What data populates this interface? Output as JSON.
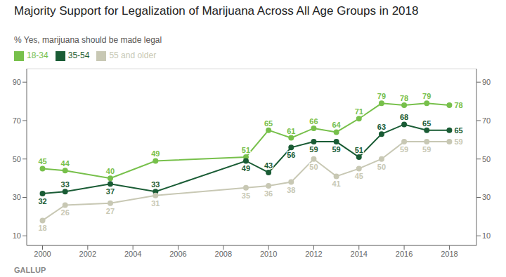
{
  "chart_data": {
    "type": "line",
    "title": "Majority Support for Legalization of Marijuana Across All Age Groups in 2018",
    "subtitle": "% Yes, marijuana should be made legal",
    "annotations": [
      "GALLUP"
    ],
    "x": [
      2000,
      2001,
      2003,
      2005,
      2009,
      2010,
      2011,
      2012,
      2013,
      2014,
      2015,
      2016,
      2017,
      2018
    ],
    "series": [
      {
        "name": "18-34",
        "color": "#77c04b",
        "values": [
          45,
          44,
          40,
          49,
          51,
          65,
          61,
          66,
          64,
          71,
          79,
          78,
          79,
          78
        ]
      },
      {
        "name": "35-54",
        "color": "#1a5c35",
        "values": [
          32,
          33,
          37,
          33,
          49,
          43,
          56,
          59,
          59,
          51,
          63,
          68,
          65,
          65
        ]
      },
      {
        "name": "55 and older",
        "color": "#c8c8b4",
        "values": [
          18,
          26,
          27,
          31,
          35,
          36,
          38,
          50,
          41,
          45,
          50,
          59,
          59,
          59
        ]
      }
    ],
    "xlim": [
      1999.3,
      2019.2
    ],
    "xticks": [
      2000,
      2002,
      2004,
      2006,
      2008,
      2010,
      2012,
      2014,
      2016,
      2018
    ],
    "ylim": [
      5,
      97
    ],
    "yticks": [
      10,
      30,
      50,
      70,
      90
    ],
    "y2lim": [
      5,
      97
    ],
    "y2ticks": [
      10,
      30,
      50,
      70,
      90
    ],
    "grid": true,
    "legend": "top",
    "data_labels": true,
    "marker": "circle"
  }
}
